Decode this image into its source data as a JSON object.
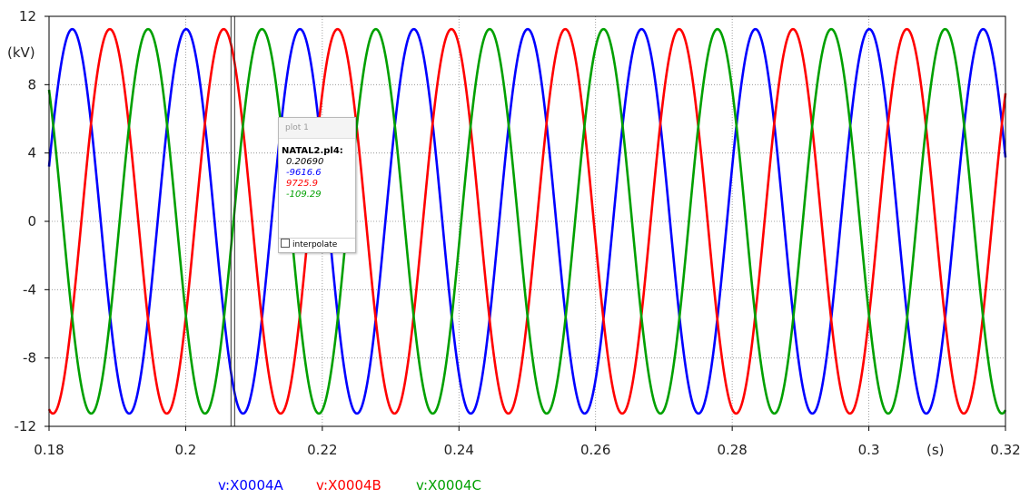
{
  "chart_data": {
    "type": "line",
    "xlabel": "(s)",
    "ylabel": "(kV)",
    "xlim": [
      0.18,
      0.32
    ],
    "ylim": [
      -12,
      12
    ],
    "xticks": [
      "0.18",
      "0.2",
      "0.22",
      "0.24",
      "0.26",
      "0.28",
      "0.3",
      "0.32"
    ],
    "yticks": [
      "12",
      "8",
      "4",
      "0",
      "-4",
      "-8",
      "-12"
    ],
    "grid": true,
    "legend_position": "bottom",
    "series_model": {
      "waveform": "sine",
      "amplitude_kV": 11.25,
      "frequency_Hz": 60,
      "x_start": 0.18,
      "x_end": 0.32
    },
    "series": [
      {
        "name": "v:X0004A",
        "color": "#0000ff",
        "peak_time_s": 0.1834,
        "x": [
          0.18,
          0.1834,
          0.1876,
          0.1917,
          0.1959,
          0.2001,
          0.2043,
          0.2084,
          0.2126,
          0.2168,
          0.2209,
          0.2251,
          0.2293,
          0.2334,
          0.2376,
          0.2418,
          0.2459,
          0.2501,
          0.2543,
          0.2584,
          0.2626,
          0.2668,
          0.2709,
          0.2751,
          0.2793,
          0.2834,
          0.2876,
          0.2918,
          0.2959,
          0.3001,
          0.3043,
          0.3084,
          0.3126,
          0.3168,
          0.32
        ],
        "y": [
          4.0,
          11.25,
          0.0,
          -11.25,
          0.0,
          11.25,
          0.0,
          -11.25,
          0.0,
          11.25,
          0.0,
          -11.25,
          0.0,
          11.25,
          0.0,
          -11.25,
          0.0,
          11.25,
          0.0,
          -11.25,
          0.0,
          11.25,
          0.0,
          -11.25,
          0.0,
          11.25,
          0.0,
          -11.25,
          0.0,
          11.25,
          0.0,
          -11.25,
          0.0,
          11.25,
          3.6
        ]
      },
      {
        "name": "v:X0004B",
        "color": "#ff0000",
        "peak_time_s": 0.1889,
        "x": [
          0.18,
          0.1806,
          0.1848,
          0.1889,
          0.1931,
          0.1973,
          0.2014,
          0.2056,
          0.2098,
          0.2139,
          0.2181,
          0.2223,
          0.2264,
          0.2306,
          0.2348,
          0.2389,
          0.2431,
          0.2473,
          0.2514,
          0.2556,
          0.2598,
          0.2639,
          0.2681,
          0.2723,
          0.2764,
          0.2806,
          0.2848,
          0.2889,
          0.2931,
          0.2973,
          0.3014,
          0.3056,
          0.3098,
          0.3139,
          0.3181,
          0.32
        ],
        "y": [
          -10.9,
          -11.25,
          0.0,
          11.25,
          0.0,
          -11.25,
          0.0,
          11.25,
          0.0,
          -11.25,
          0.0,
          11.25,
          0.0,
          -11.25,
          0.0,
          11.25,
          0.0,
          -11.25,
          0.0,
          11.25,
          0.0,
          -11.25,
          0.0,
          11.25,
          0.0,
          -11.25,
          0.0,
          11.25,
          0.0,
          -11.25,
          0.0,
          11.25,
          0.0,
          -11.25,
          0.0,
          7.3
        ]
      },
      {
        "name": "v:X0004C",
        "color": "#00a000",
        "peak_time_s": 0.1945,
        "x": [
          0.18,
          0.182,
          0.1862,
          0.1903,
          0.1945,
          0.1987,
          0.2028,
          0.207,
          0.2112,
          0.2153,
          0.2195,
          0.2237,
          0.2278,
          0.232,
          0.2362,
          0.2403,
          0.2445,
          0.2487,
          0.2528,
          0.257,
          0.2612,
          0.2653,
          0.2695,
          0.2737,
          0.2778,
          0.282,
          0.2862,
          0.2903,
          0.2945,
          0.2987,
          0.3028,
          0.307,
          0.3112,
          0.3153,
          0.3195,
          0.32
        ],
        "y": [
          7.9,
          0.0,
          -11.25,
          0.0,
          11.25,
          0.0,
          -11.25,
          0.0,
          11.25,
          0.0,
          -11.25,
          0.0,
          11.25,
          0.0,
          -11.25,
          0.0,
          11.25,
          0.0,
          -11.25,
          0.0,
          11.25,
          0.0,
          -11.25,
          0.0,
          11.25,
          0.0,
          -11.25,
          0.0,
          11.25,
          0.0,
          -11.25,
          0.0,
          11.25,
          0.0,
          -11.25,
          -10.9
        ]
      }
    ],
    "cursor": {
      "x": 0.2069,
      "panel": {
        "title": "plot 1",
        "file": "NATAL2.pl4:",
        "values": [
          "0.20690",
          "-9616.6",
          "9725.9",
          "-109.29"
        ],
        "value_colors": [
          "#000000",
          "#0000ff",
          "#ff0000",
          "#00a000"
        ],
        "interpolate_label": "interpolate",
        "interpolate_checked": false
      }
    }
  }
}
